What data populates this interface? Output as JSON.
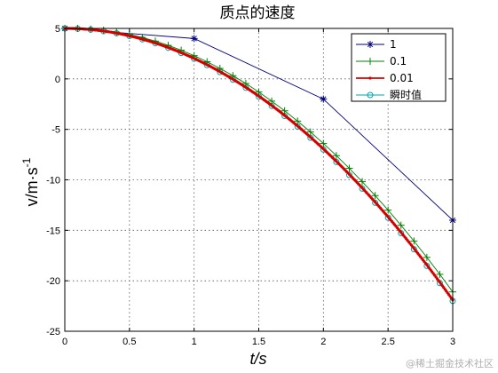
{
  "chart_data": {
    "type": "line",
    "title": "质点的速度",
    "xlabel": "t/s",
    "ylabel": "v/m·s",
    "ylabel_superscript": "-1",
    "xlim": [
      0,
      3
    ],
    "ylim": [
      -25,
      5
    ],
    "xticks": [
      0,
      0.5,
      1,
      1.5,
      2,
      2.5,
      3
    ],
    "xtick_labels": [
      "0",
      "0.5",
      "1",
      "1.5",
      "2",
      "2.5",
      "3"
    ],
    "yticks": [
      5,
      0,
      -5,
      -10,
      -15,
      -20,
      -25
    ],
    "ytick_labels": [
      "5",
      "0",
      "-5",
      "-10",
      "-15",
      "-20",
      "-25"
    ],
    "grid": true,
    "legend_position": "top-right",
    "series": [
      {
        "name": "1",
        "color": "#00007f",
        "marker": "asterisk",
        "x": [
          0,
          1,
          2,
          3
        ],
        "y": [
          5,
          4,
          -2,
          -14
        ]
      },
      {
        "name": "0.1",
        "color": "#008000",
        "marker": "plus",
        "step": 0.1
      },
      {
        "name": "0.01",
        "color": "#d40000",
        "marker": "dot",
        "step": 0.01
      },
      {
        "name": "瞬时值",
        "color": "#00a5a5",
        "marker": "circle",
        "step": 0.1
      }
    ]
  },
  "watermark": "@稀土掘金技术社区"
}
